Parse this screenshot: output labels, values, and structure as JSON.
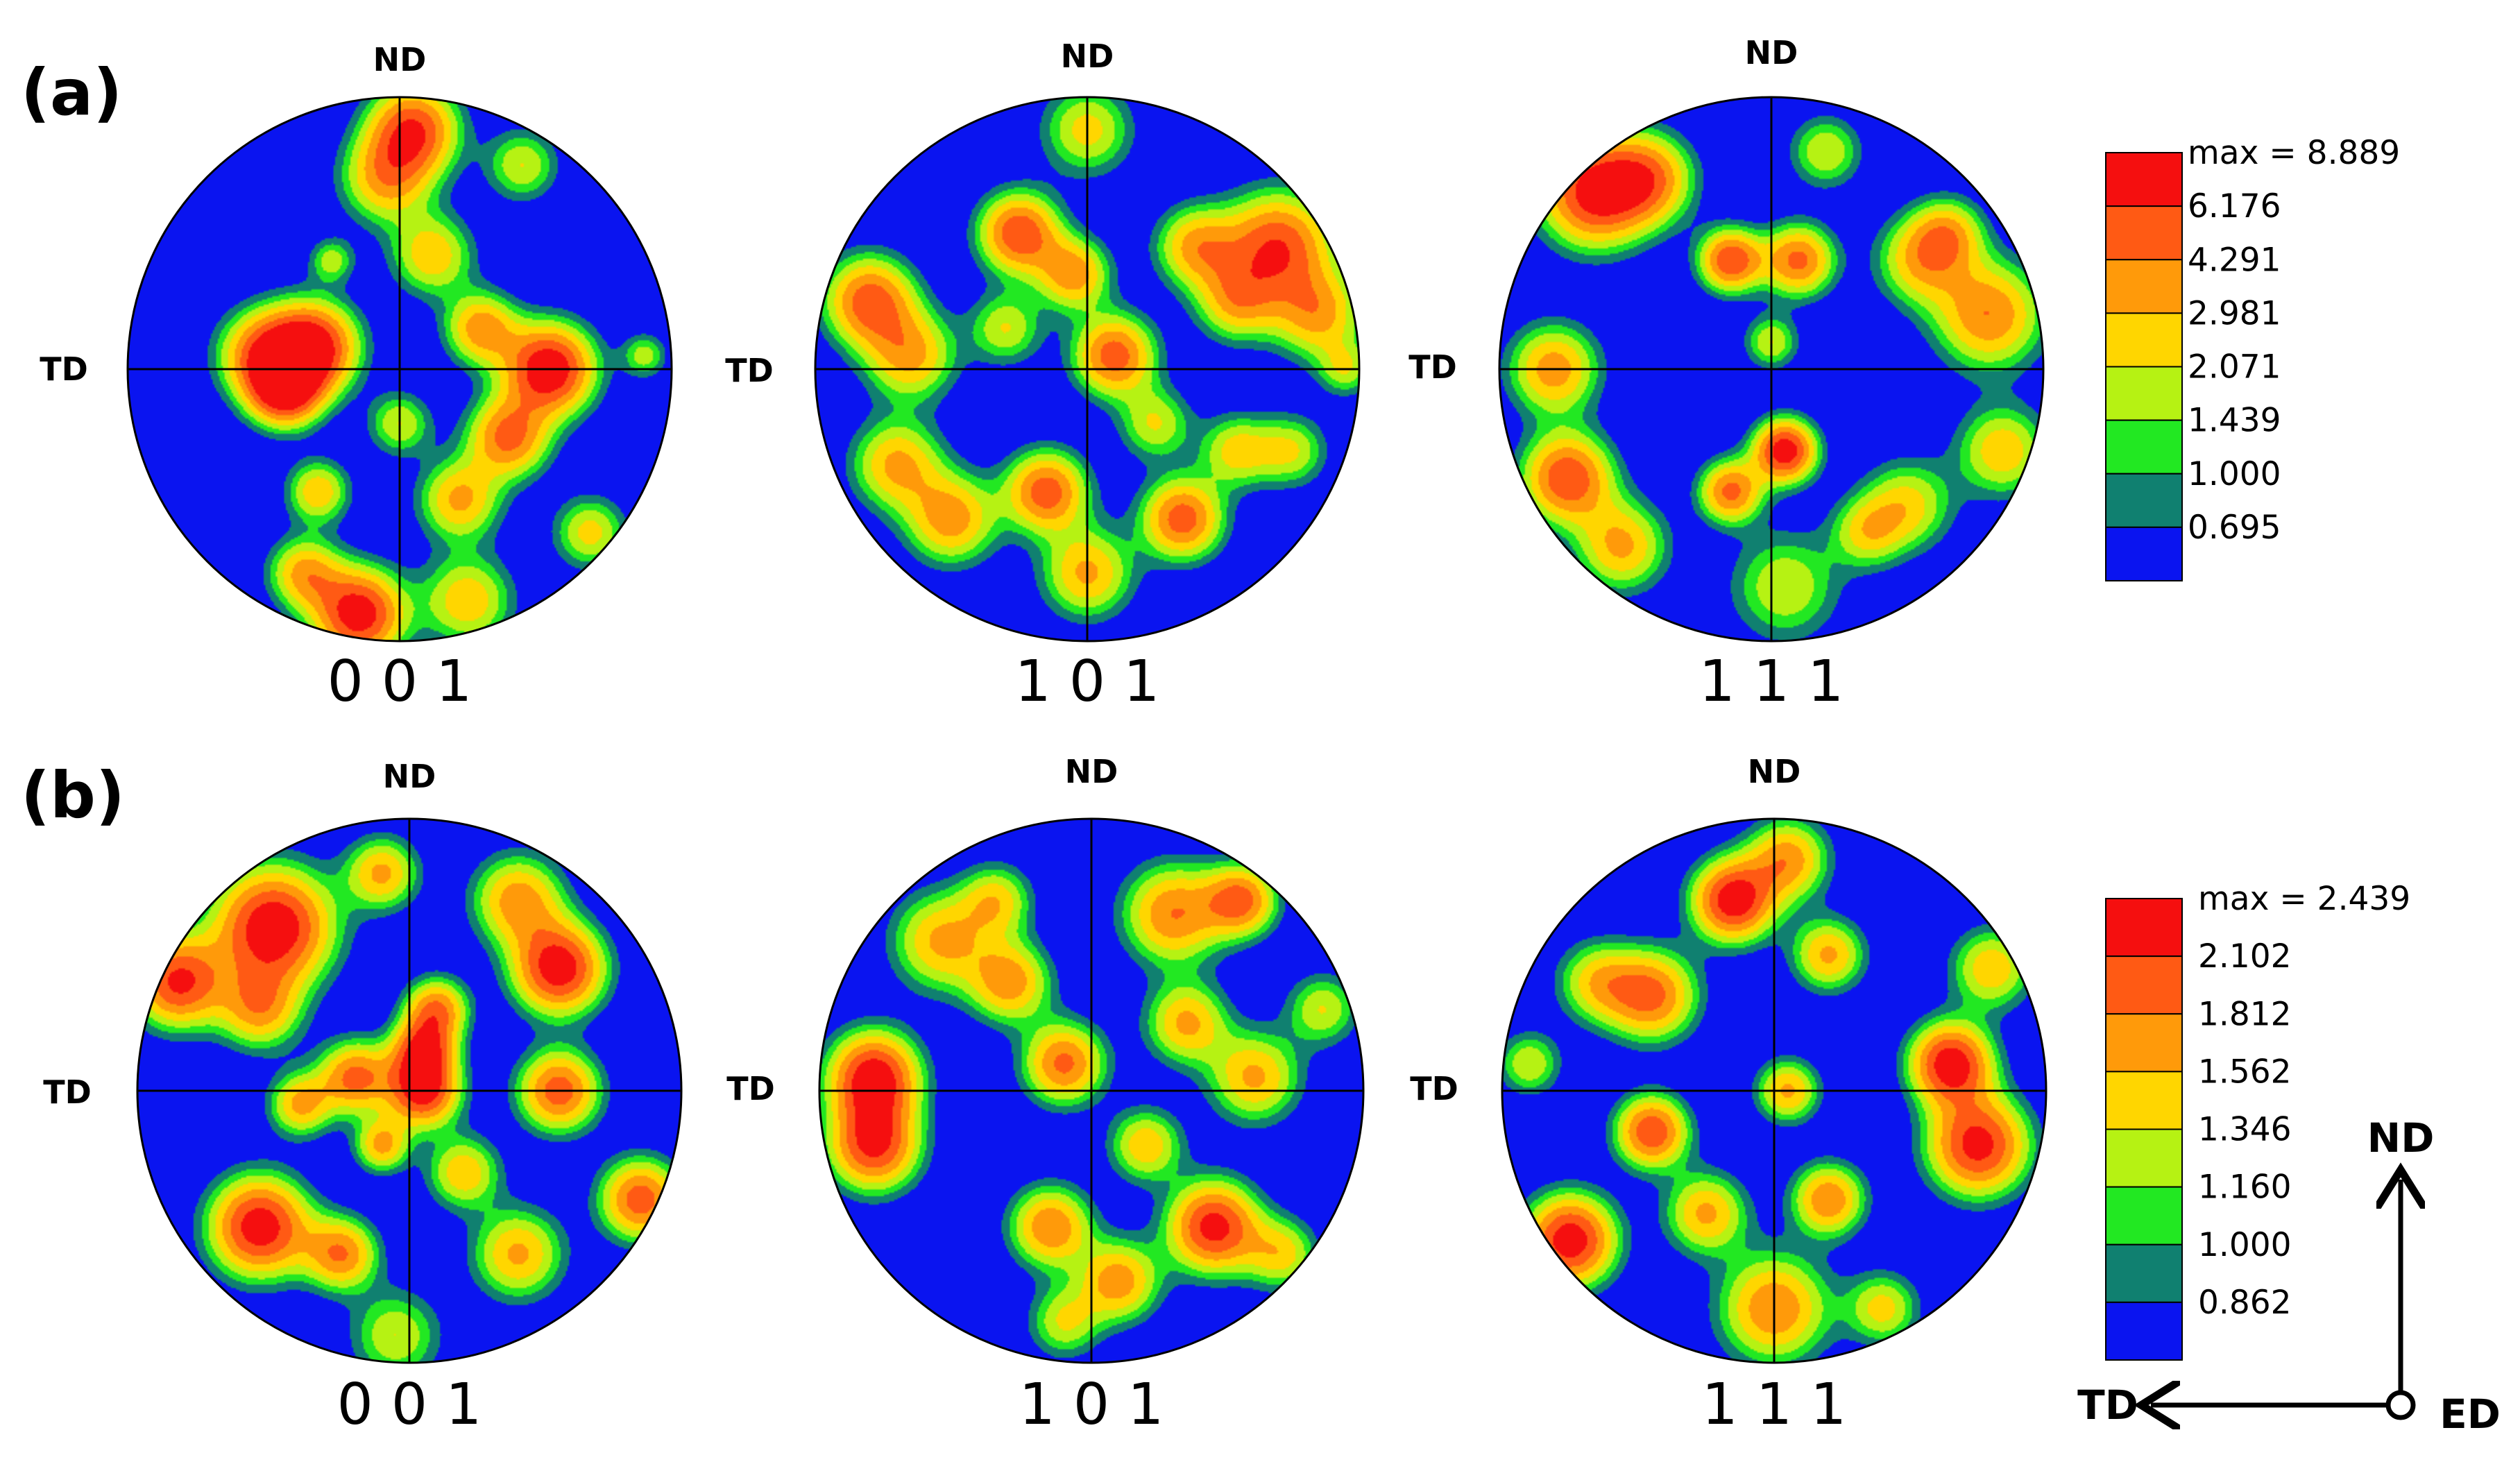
{
  "chart_data": {
    "type": "pole-figure",
    "colors": {
      "scale": [
        "#0a14f0",
        "#108070",
        "#22e822",
        "#b6f213",
        "#ffd600",
        "#ff9a0a",
        "#ff5a14",
        "#f50f0f"
      ],
      "outline": "#000000"
    },
    "rows": [
      {
        "label": "(a)",
        "legend": {
          "levels": [
            "max = 8.889",
            "6.176",
            "4.291",
            "2.981",
            "2.071",
            "1.439",
            "1.000",
            "0.695"
          ]
        },
        "figures": [
          {
            "pole": "0 0 1",
            "top_label": "ND",
            "left_label": "TD",
            "peaks": [
              [
                0.05,
                0.88,
                0.8,
                0.1
              ],
              [
                -0.05,
                0.7,
                0.55,
                0.1
              ],
              [
                0.12,
                0.42,
                0.5,
                0.09
              ],
              [
                -0.5,
                0.05,
                0.7,
                0.1
              ],
              [
                -0.32,
                0.08,
                0.95,
                0.1
              ],
              [
                -0.42,
                -0.08,
                0.85,
                0.08
              ],
              [
                0.55,
                0.0,
                1.0,
                0.1
              ],
              [
                0.4,
                -0.25,
                0.7,
                0.09
              ],
              [
                0.3,
                0.15,
                0.6,
                0.08
              ],
              [
                0.22,
                -0.48,
                0.55,
                0.09
              ],
              [
                0.0,
                -0.2,
                0.4,
                0.07
              ],
              [
                -0.3,
                -0.45,
                0.5,
                0.07
              ],
              [
                -0.15,
                -0.9,
                0.95,
                0.1
              ],
              [
                -0.35,
                -0.75,
                0.55,
                0.08
              ],
              [
                0.25,
                -0.85,
                0.5,
                0.1
              ],
              [
                0.7,
                -0.6,
                0.45,
                0.08
              ],
              [
                0.9,
                0.05,
                0.35,
                0.05
              ],
              [
                -0.25,
                0.4,
                0.35,
                0.05
              ],
              [
                0.45,
                0.75,
                0.4,
                0.08
              ]
            ]
          },
          {
            "pole": "1 0 1",
            "top_label": "ND",
            "left_label": "TD",
            "peaks": [
              [
                0.0,
                0.88,
                0.45,
                0.1
              ],
              [
                -0.8,
                0.25,
                0.75,
                0.1
              ],
              [
                -0.65,
                0.05,
                0.55,
                0.1
              ],
              [
                -0.25,
                0.5,
                0.8,
                0.09
              ],
              [
                -0.05,
                0.35,
                0.6,
                0.08
              ],
              [
                0.1,
                0.05,
                0.75,
                0.09
              ],
              [
                0.4,
                0.45,
                0.55,
                0.09
              ],
              [
                0.55,
                0.25,
                0.5,
                0.09
              ],
              [
                0.7,
                0.45,
                0.8,
                0.12
              ],
              [
                0.85,
                0.2,
                0.55,
                0.1
              ],
              [
                -0.7,
                -0.35,
                0.55,
                0.1
              ],
              [
                -0.5,
                -0.55,
                0.6,
                0.1
              ],
              [
                -0.15,
                -0.45,
                0.75,
                0.09
              ],
              [
                0.0,
                -0.75,
                0.55,
                0.1
              ],
              [
                0.35,
                -0.55,
                0.75,
                0.09
              ],
              [
                0.55,
                -0.3,
                0.45,
                0.08
              ],
              [
                0.75,
                -0.3,
                0.4,
                0.08
              ],
              [
                -0.3,
                0.15,
                0.4,
                0.08
              ],
              [
                0.25,
                -0.2,
                0.4,
                0.08
              ],
              [
                0.95,
                0.0,
                0.35,
                0.06
              ]
            ]
          },
          {
            "pole": "1 1 1",
            "top_label": "ND",
            "left_label": "TD",
            "peaks": [
              [
                -0.65,
                0.65,
                0.9,
                0.12
              ],
              [
                -0.45,
                0.7,
                0.6,
                0.1
              ],
              [
                -0.15,
                0.4,
                0.8,
                0.07
              ],
              [
                0.1,
                0.4,
                0.7,
                0.08
              ],
              [
                0.0,
                0.1,
                0.4,
                0.06
              ],
              [
                0.55,
                0.4,
                0.5,
                0.1
              ],
              [
                0.8,
                0.2,
                0.65,
                0.12
              ],
              [
                0.65,
                0.5,
                0.45,
                0.08
              ],
              [
                -0.8,
                0.0,
                0.6,
                0.1
              ],
              [
                -0.75,
                -0.4,
                0.8,
                0.1
              ],
              [
                -0.55,
                -0.65,
                0.55,
                0.1
              ],
              [
                0.05,
                -0.3,
                0.95,
                0.07
              ],
              [
                -0.15,
                -0.45,
                0.7,
                0.07
              ],
              [
                0.05,
                -0.8,
                0.4,
                0.12
              ],
              [
                0.5,
                -0.5,
                0.45,
                0.1
              ],
              [
                0.85,
                -0.3,
                0.5,
                0.1
              ],
              [
                0.2,
                0.8,
                0.4,
                0.08
              ],
              [
                0.35,
                -0.6,
                0.4,
                0.08
              ]
            ]
          }
        ]
      },
      {
        "label": "(b)",
        "legend": {
          "levels": [
            "max = 2.439",
            "2.102",
            "1.812",
            "1.562",
            "1.346",
            "1.160",
            "1.000",
            "0.862"
          ]
        },
        "figures": [
          {
            "pole": "0 0 1",
            "top_label": "ND",
            "left_label": "TD",
            "peaks": [
              [
                -0.5,
                0.6,
                1.0,
                0.13
              ],
              [
                -0.85,
                0.4,
                0.85,
                0.1
              ],
              [
                -0.55,
                0.3,
                0.55,
                0.09
              ],
              [
                0.55,
                0.45,
                0.95,
                0.1
              ],
              [
                0.4,
                0.7,
                0.6,
                0.1
              ],
              [
                0.1,
                0.3,
                0.65,
                0.07
              ],
              [
                0.05,
                0.0,
                0.9,
                0.08
              ],
              [
                0.05,
                0.15,
                0.75,
                0.07
              ],
              [
                -0.2,
                0.05,
                0.7,
                0.08
              ],
              [
                -0.4,
                -0.05,
                0.55,
                0.07
              ],
              [
                0.55,
                0.0,
                0.75,
                0.09
              ],
              [
                -0.55,
                -0.5,
                0.95,
                0.11
              ],
              [
                -0.25,
                -0.6,
                0.65,
                0.08
              ],
              [
                0.4,
                -0.6,
                0.55,
                0.1
              ],
              [
                0.85,
                -0.4,
                0.75,
                0.09
              ],
              [
                -0.1,
                -0.2,
                0.55,
                0.06
              ],
              [
                -0.1,
                0.8,
                0.55,
                0.08
              ],
              [
                -0.05,
                -0.9,
                0.4,
                0.1
              ],
              [
                0.2,
                -0.3,
                0.5,
                0.08
              ]
            ]
          },
          {
            "pole": "1 0 1",
            "top_label": "ND",
            "left_label": "TD",
            "peaks": [
              [
                -0.8,
                0.05,
                0.95,
                0.1
              ],
              [
                -0.8,
                -0.2,
                0.85,
                0.1
              ],
              [
                -0.55,
                0.55,
                0.55,
                0.11
              ],
              [
                -0.3,
                0.4,
                0.6,
                0.09
              ],
              [
                -0.1,
                0.1,
                0.7,
                0.09
              ],
              [
                0.3,
                0.65,
                0.65,
                0.11
              ],
              [
                0.55,
                0.7,
                0.7,
                0.08
              ],
              [
                0.35,
                0.25,
                0.55,
                0.09
              ],
              [
                0.6,
                0.05,
                0.55,
                0.1
              ],
              [
                -0.15,
                -0.5,
                0.65,
                0.09
              ],
              [
                0.1,
                -0.7,
                0.6,
                0.09
              ],
              [
                0.45,
                -0.5,
                0.9,
                0.1
              ],
              [
                0.2,
                -0.2,
                0.5,
                0.08
              ],
              [
                -0.35,
                0.7,
                0.45,
                0.08
              ],
              [
                -0.1,
                -0.85,
                0.4,
                0.08
              ],
              [
                0.85,
                0.3,
                0.4,
                0.08
              ],
              [
                0.7,
                -0.6,
                0.45,
                0.08
              ]
            ]
          },
          {
            "pole": "1 1 1",
            "top_label": "ND",
            "left_label": "TD",
            "peaks": [
              [
                -0.15,
                0.7,
                0.95,
                0.09
              ],
              [
                0.05,
                0.85,
                0.6,
                0.09
              ],
              [
                0.2,
                0.5,
                0.55,
                0.08
              ],
              [
                -0.45,
                0.35,
                0.7,
                0.1
              ],
              [
                -0.65,
                0.4,
                0.45,
                0.09
              ],
              [
                0.65,
                0.1,
                0.95,
                0.09
              ],
              [
                0.75,
                -0.2,
                0.9,
                0.11
              ],
              [
                0.8,
                0.45,
                0.5,
                0.09
              ],
              [
                -0.45,
                -0.15,
                0.8,
                0.08
              ],
              [
                -0.25,
                -0.45,
                0.55,
                0.09
              ],
              [
                -0.75,
                -0.55,
                0.95,
                0.1
              ],
              [
                0.2,
                -0.4,
                0.65,
                0.08
              ],
              [
                0.0,
                -0.8,
                0.65,
                0.12
              ],
              [
                0.05,
                0.0,
                0.55,
                0.07
              ],
              [
                0.4,
                -0.8,
                0.45,
                0.08
              ],
              [
                -0.9,
                0.1,
                0.4,
                0.07
              ]
            ]
          }
        ]
      }
    ]
  },
  "axis_indicator": {
    "up": "ND",
    "left": "TD",
    "out": "ED"
  }
}
